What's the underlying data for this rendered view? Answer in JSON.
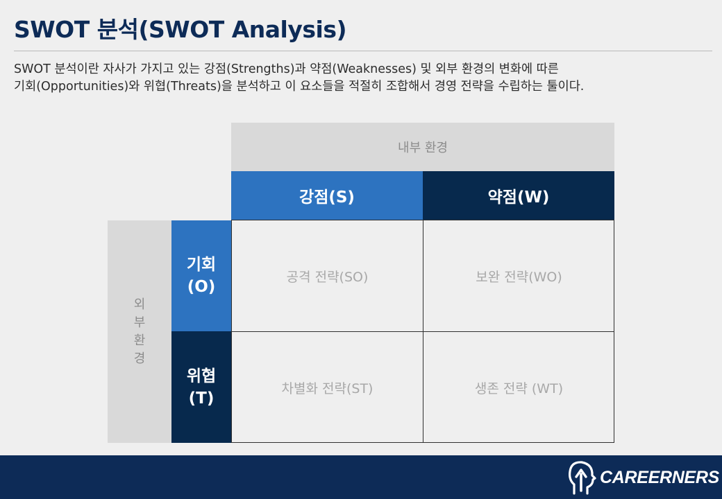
{
  "header": {
    "title": "SWOT 분석(SWOT Analysis)"
  },
  "description": {
    "line1": "SWOT 분석이란 자사가 가지고 있는 강점(Strengths)과 약점(Weaknesses) 및 외부 환경의 변화에 따른",
    "line2": "기회(Opportunities)와 위협(Threats)을 분석하고 이 요소들을 적절히 조합해서 경영 전략을 수립하는 툴이다."
  },
  "matrix": {
    "internal_label": "내부 환경",
    "external_label_chars": [
      "외",
      "부",
      "환",
      "경"
    ],
    "strength_label": "강점(S)",
    "weakness_label": "약점(W)",
    "opportunity_label_line1": "기회",
    "opportunity_label_line2": "(O)",
    "threat_label_line1": "위협",
    "threat_label_line2": "(T)",
    "so": "공격 전략(SO)",
    "wo": "보완 전략(WO)",
    "st": "차별화 전략(ST)",
    "wt": "생존 전략 (WT)"
  },
  "colors": {
    "title": "#0d2b57",
    "blue": "#2d73c0",
    "navy": "#07294d",
    "gray_header": "#d9d9d9",
    "footer": "#0d2b57"
  },
  "footer": {
    "logo_text": "CAREERNERS",
    "logo_icon": "head-arrow-icon"
  }
}
